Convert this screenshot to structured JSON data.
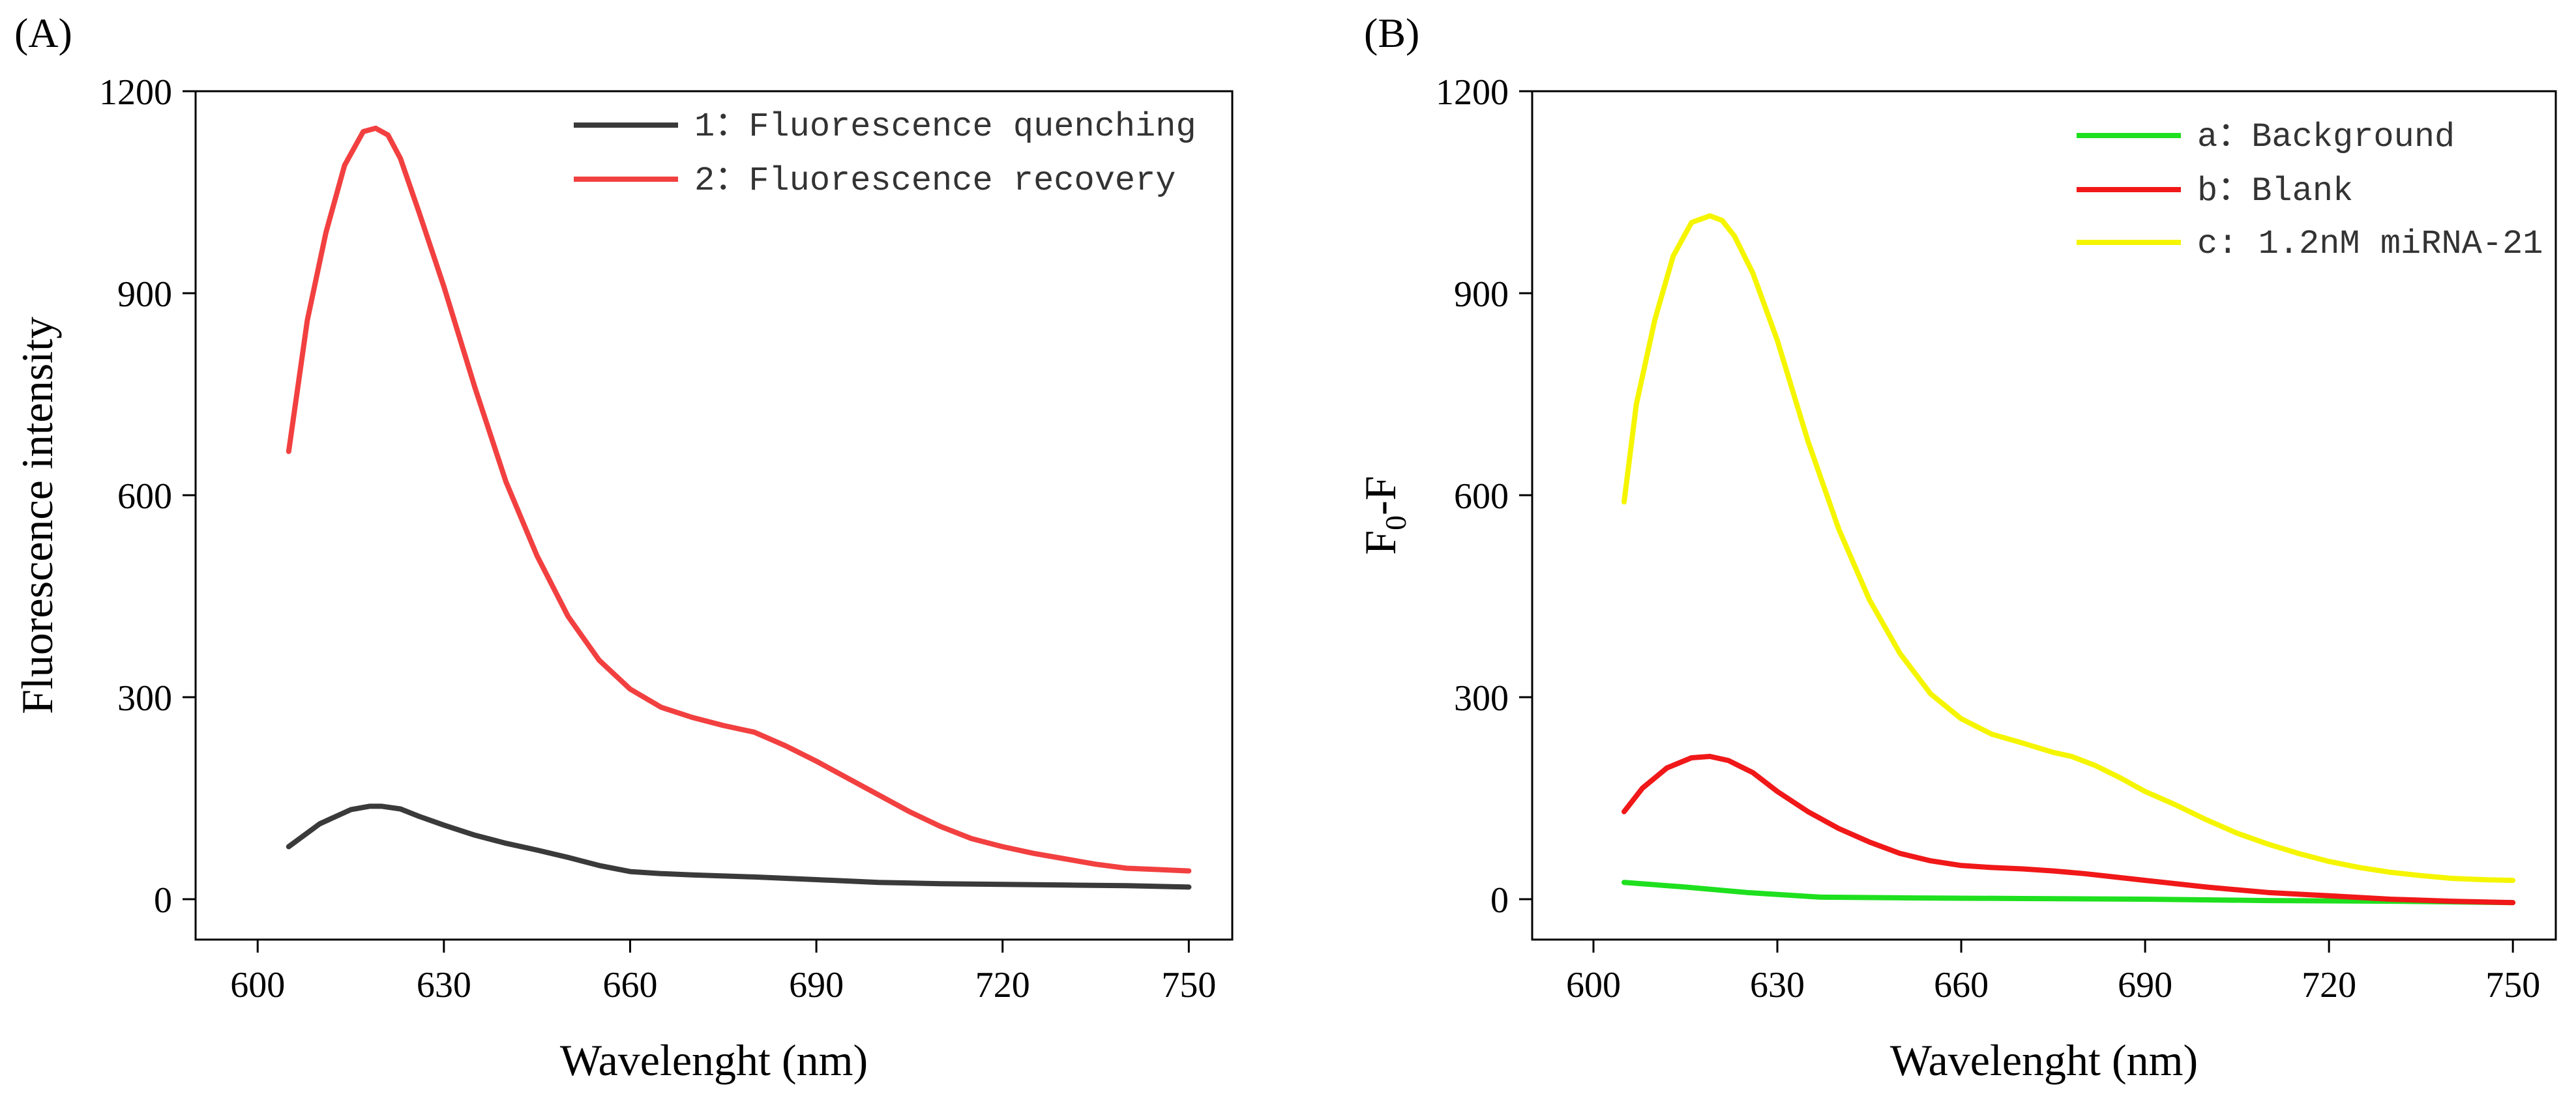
{
  "colors": {
    "quenching": "#3a3a3a",
    "recovery": "#f24040",
    "background": "#1ee01e",
    "blank": "#f01818",
    "mirna": "#f5f500"
  },
  "chart_data": [
    {
      "type": "line",
      "panel_label": "(A)",
      "xlabel": "Wavelenght (nm)",
      "ylabel": "Fluorescence intensity",
      "xlim": [
        590,
        757
      ],
      "ylim": [
        -60,
        1200
      ],
      "xticks": [
        600,
        630,
        660,
        690,
        720,
        750
      ],
      "yticks": [
        0,
        300,
        600,
        900,
        1200
      ],
      "xtick_labels": [
        "600",
        "630",
        "660",
        "690",
        "720",
        "750"
      ],
      "ytick_labels": [
        "0",
        "300",
        "600",
        "900",
        "1200"
      ],
      "legend_position": "top-right",
      "series": [
        {
          "name": "1：Fluorescence quenching",
          "color_key": "quenching",
          "x": [
            605,
            610,
            615,
            618,
            620,
            623,
            626,
            630,
            635,
            640,
            645,
            650,
            655,
            660,
            665,
            670,
            680,
            690,
            700,
            710,
            720,
            730,
            740,
            750
          ],
          "y": [
            78,
            112,
            133,
            138,
            138,
            134,
            123,
            110,
            95,
            83,
            73,
            62,
            50,
            41,
            38,
            36,
            33,
            29,
            25,
            23,
            22,
            21,
            20,
            18
          ]
        },
        {
          "name": "2：Fluorescence recovery",
          "color_key": "recovery",
          "x": [
            605,
            608,
            611,
            614,
            617,
            619,
            621,
            623,
            626,
            630,
            635,
            640,
            645,
            650,
            655,
            660,
            665,
            670,
            675,
            680,
            685,
            690,
            695,
            700,
            705,
            710,
            715,
            720,
            725,
            730,
            735,
            740,
            745,
            750
          ],
          "y": [
            665,
            860,
            990,
            1090,
            1140,
            1145,
            1135,
            1100,
            1020,
            910,
            760,
            620,
            510,
            420,
            355,
            312,
            285,
            270,
            258,
            248,
            228,
            205,
            180,
            155,
            130,
            108,
            90,
            78,
            68,
            60,
            52,
            46,
            44,
            42
          ]
        }
      ]
    },
    {
      "type": "line",
      "panel_label": "(B)",
      "xlabel": "Wavelenght (nm)",
      "ylabel_main": "F",
      "ylabel_sub": "0",
      "ylabel_tail": "-F",
      "xlim": [
        590,
        757
      ],
      "ylim": [
        -60,
        1200
      ],
      "xticks": [
        600,
        630,
        660,
        690,
        720,
        750
      ],
      "yticks": [
        0,
        300,
        600,
        900,
        1200
      ],
      "xtick_labels": [
        "600",
        "630",
        "660",
        "690",
        "720",
        "750"
      ],
      "ytick_labels": [
        "0",
        "300",
        "600",
        "900",
        "1200"
      ],
      "legend_position": "top-right",
      "series": [
        {
          "name": "a：Background",
          "color_key": "background",
          "x": [
            605,
            615,
            625,
            637,
            650,
            670,
            690,
            710,
            730,
            750
          ],
          "y": [
            25,
            18,
            10,
            3,
            2,
            1,
            0,
            -2,
            -3,
            -5
          ]
        },
        {
          "name": "b：Blank",
          "color_key": "blank",
          "x": [
            605,
            608,
            612,
            616,
            619,
            622,
            626,
            630,
            635,
            640,
            645,
            650,
            655,
            660,
            665,
            670,
            675,
            680,
            685,
            690,
            700,
            710,
            720,
            730,
            740,
            750
          ],
          "y": [
            130,
            165,
            195,
            210,
            212,
            206,
            188,
            160,
            130,
            105,
            85,
            68,
            57,
            50,
            47,
            45,
            42,
            38,
            33,
            28,
            18,
            10,
            5,
            0,
            -3,
            -5
          ]
        },
        {
          "name": "c: 1.2nM miRNA-21",
          "color_key": "mirna",
          "x": [
            605,
            607,
            610,
            613,
            616,
            619,
            621,
            623,
            626,
            630,
            635,
            640,
            645,
            650,
            655,
            660,
            665,
            670,
            675,
            678,
            682,
            686,
            690,
            695,
            700,
            705,
            710,
            715,
            720,
            725,
            730,
            735,
            740,
            745,
            750
          ],
          "y": [
            590,
            735,
            860,
            955,
            1005,
            1015,
            1008,
            985,
            930,
            830,
            680,
            550,
            445,
            365,
            305,
            268,
            245,
            232,
            218,
            212,
            198,
            180,
            160,
            140,
            118,
            98,
            82,
            68,
            56,
            47,
            40,
            35,
            31,
            29,
            28
          ]
        }
      ]
    }
  ]
}
